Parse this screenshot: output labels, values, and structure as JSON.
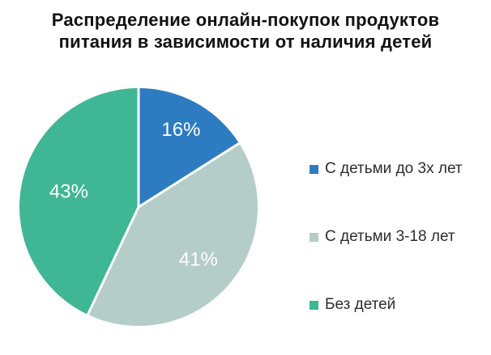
{
  "chart_data": {
    "type": "pie",
    "title": "Распределение онлайн-покупок продуктов питания в зависимости от наличия детей",
    "title_lines": [
      "Распределение онлайн-покупок продуктов",
      "питания в зависимости от наличия детей"
    ],
    "slices": [
      {
        "label": "С детьми до 3х лет",
        "value": 16,
        "display": "16%",
        "color": "#2d7cc1"
      },
      {
        "label": "С детьми 3-18 лет",
        "value": 41,
        "display": "41%",
        "color": "#b5cdc9"
      },
      {
        "label": "Без детей",
        "value": 43,
        "display": "43%",
        "color": "#3fb795"
      }
    ],
    "start_angle_deg": 0,
    "direction": "clockwise",
    "legend_position": "right",
    "slice_label_color": "#ffffff",
    "separator_color": "#ffffff",
    "label_radius_fraction": [
      0.74,
      0.67,
      0.6
    ]
  }
}
